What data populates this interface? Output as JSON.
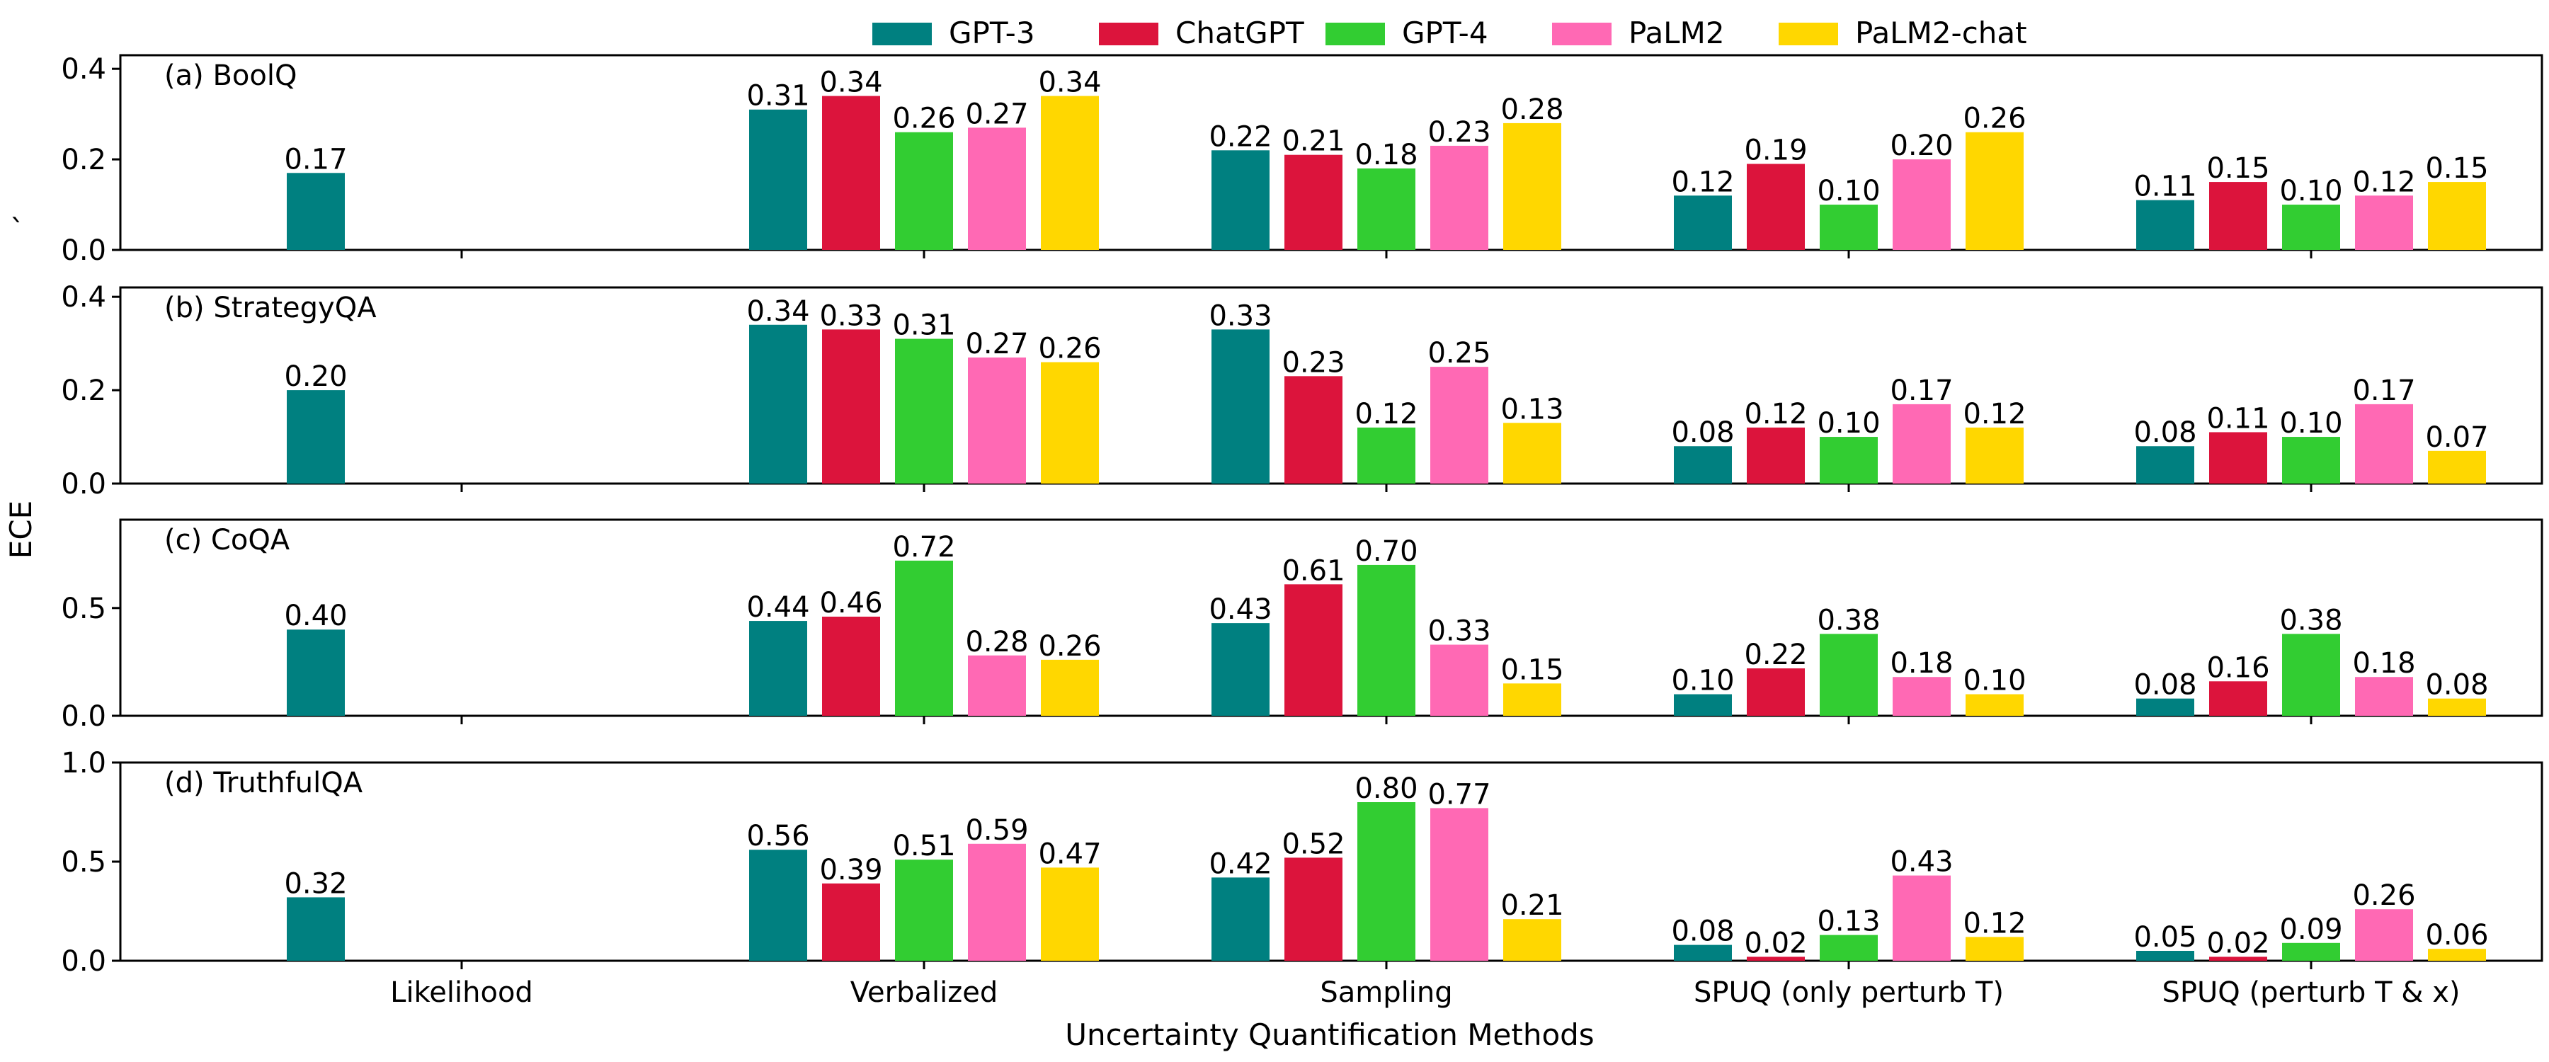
{
  "chart_data": {
    "type": "bar",
    "xlabel": "Uncertainty Quantification Methods",
    "ylabel": "ECE",
    "stray_label": "`",
    "categories": [
      "Likelihood",
      "Verbalized",
      "Sampling",
      "SPUQ (only perturb T)",
      "SPUQ (perturb T & x)"
    ],
    "series_names": [
      "GPT-3",
      "ChatGPT",
      "GPT-4",
      "PaLM2",
      "PaLM2-chat"
    ],
    "colors": [
      "#008080",
      "#DC143C",
      "#32CD32",
      "#FF69B4",
      "#FFD700"
    ],
    "panels": [
      {
        "title": "(a) BoolQ",
        "ylim": [
          0,
          0.43
        ],
        "yticks": [
          "0.0",
          "0.2",
          "0.4"
        ],
        "ytick_values": [
          0,
          0.2,
          0.4
        ],
        "values": [
          [
            0.17,
            null,
            null,
            null,
            null
          ],
          [
            0.31,
            0.34,
            0.26,
            0.27,
            0.34
          ],
          [
            0.22,
            0.21,
            0.18,
            0.23,
            0.28
          ],
          [
            0.12,
            0.19,
            0.1,
            0.2,
            0.26
          ],
          [
            0.11,
            0.15,
            0.1,
            0.12,
            0.15
          ]
        ],
        "labels": [
          [
            "0.17",
            "",
            "",
            "",
            ""
          ],
          [
            "0.31",
            "0.34",
            "0.26",
            "0.27",
            "0.34"
          ],
          [
            "0.22",
            "0.21",
            "0.18",
            "0.23",
            "0.28"
          ],
          [
            "0.12",
            "0.19",
            "0.10",
            "0.20",
            "0.26"
          ],
          [
            "0.11",
            "0.15",
            "0.10",
            "0.12",
            "0.15"
          ]
        ]
      },
      {
        "title": "(b) StrategyQA",
        "ylim": [
          0,
          0.42
        ],
        "yticks": [
          "0.0",
          "0.2",
          "0.4"
        ],
        "ytick_values": [
          0,
          0.2,
          0.4
        ],
        "values": [
          [
            0.2,
            null,
            null,
            null,
            null
          ],
          [
            0.34,
            0.33,
            0.31,
            0.27,
            0.26
          ],
          [
            0.33,
            0.23,
            0.12,
            0.25,
            0.13
          ],
          [
            0.08,
            0.12,
            0.1,
            0.17,
            0.12
          ],
          [
            0.08,
            0.11,
            0.1,
            0.17,
            0.07
          ]
        ],
        "labels": [
          [
            "0.20",
            "",
            "",
            "",
            ""
          ],
          [
            "0.34",
            "0.33",
            "0.31",
            "0.27",
            "0.26"
          ],
          [
            "0.33",
            "0.23",
            "0.12",
            "0.25",
            "0.13"
          ],
          [
            "0.08",
            "0.12",
            "0.10",
            "0.17",
            "0.12"
          ],
          [
            "0.08",
            "0.11",
            "0.10",
            "0.17",
            "0.07"
          ]
        ]
      },
      {
        "title": "(c) CoQA",
        "ylim": [
          0,
          0.91
        ],
        "yticks": [
          "0.0",
          "0.5"
        ],
        "ytick_values": [
          0,
          0.5
        ],
        "values": [
          [
            0.4,
            null,
            null,
            null,
            null
          ],
          [
            0.44,
            0.46,
            0.72,
            0.28,
            0.26
          ],
          [
            0.43,
            0.61,
            0.7,
            0.33,
            0.15
          ],
          [
            0.1,
            0.22,
            0.38,
            0.18,
            0.1
          ],
          [
            0.08,
            0.16,
            0.38,
            0.18,
            0.08
          ]
        ],
        "labels": [
          [
            "0.40",
            "",
            "",
            "",
            ""
          ],
          [
            "0.44",
            "0.46",
            "0.72",
            "0.28",
            "0.26"
          ],
          [
            "0.43",
            "0.61",
            "0.70",
            "0.33",
            "0.15"
          ],
          [
            "0.10",
            "0.22",
            "0.38",
            "0.18",
            "0.10"
          ],
          [
            "0.08",
            "0.16",
            "0.38",
            "0.18",
            "0.08"
          ]
        ]
      },
      {
        "title": "(d) TruthfulQA",
        "ylim": [
          0,
          1.0
        ],
        "yticks": [
          "0.0",
          "0.5",
          "1.0"
        ],
        "ytick_values": [
          0,
          0.5,
          1.0
        ],
        "values": [
          [
            0.32,
            null,
            null,
            null,
            null
          ],
          [
            0.56,
            0.39,
            0.51,
            0.59,
            0.47
          ],
          [
            0.42,
            0.52,
            0.8,
            0.77,
            0.21
          ],
          [
            0.08,
            0.02,
            0.13,
            0.43,
            0.12
          ],
          [
            0.05,
            0.02,
            0.09,
            0.26,
            0.06
          ]
        ],
        "labels": [
          [
            "0.32",
            "",
            "",
            "",
            ""
          ],
          [
            "0.56",
            "0.39",
            "0.51",
            "0.59",
            "0.47"
          ],
          [
            "0.42",
            "0.52",
            "0.80",
            "0.77",
            "0.21"
          ],
          [
            "0.08",
            "0.02",
            "0.13",
            "0.43",
            "0.12"
          ],
          [
            "0.05",
            "0.02",
            "0.09",
            "0.26",
            "0.06"
          ]
        ]
      }
    ]
  }
}
